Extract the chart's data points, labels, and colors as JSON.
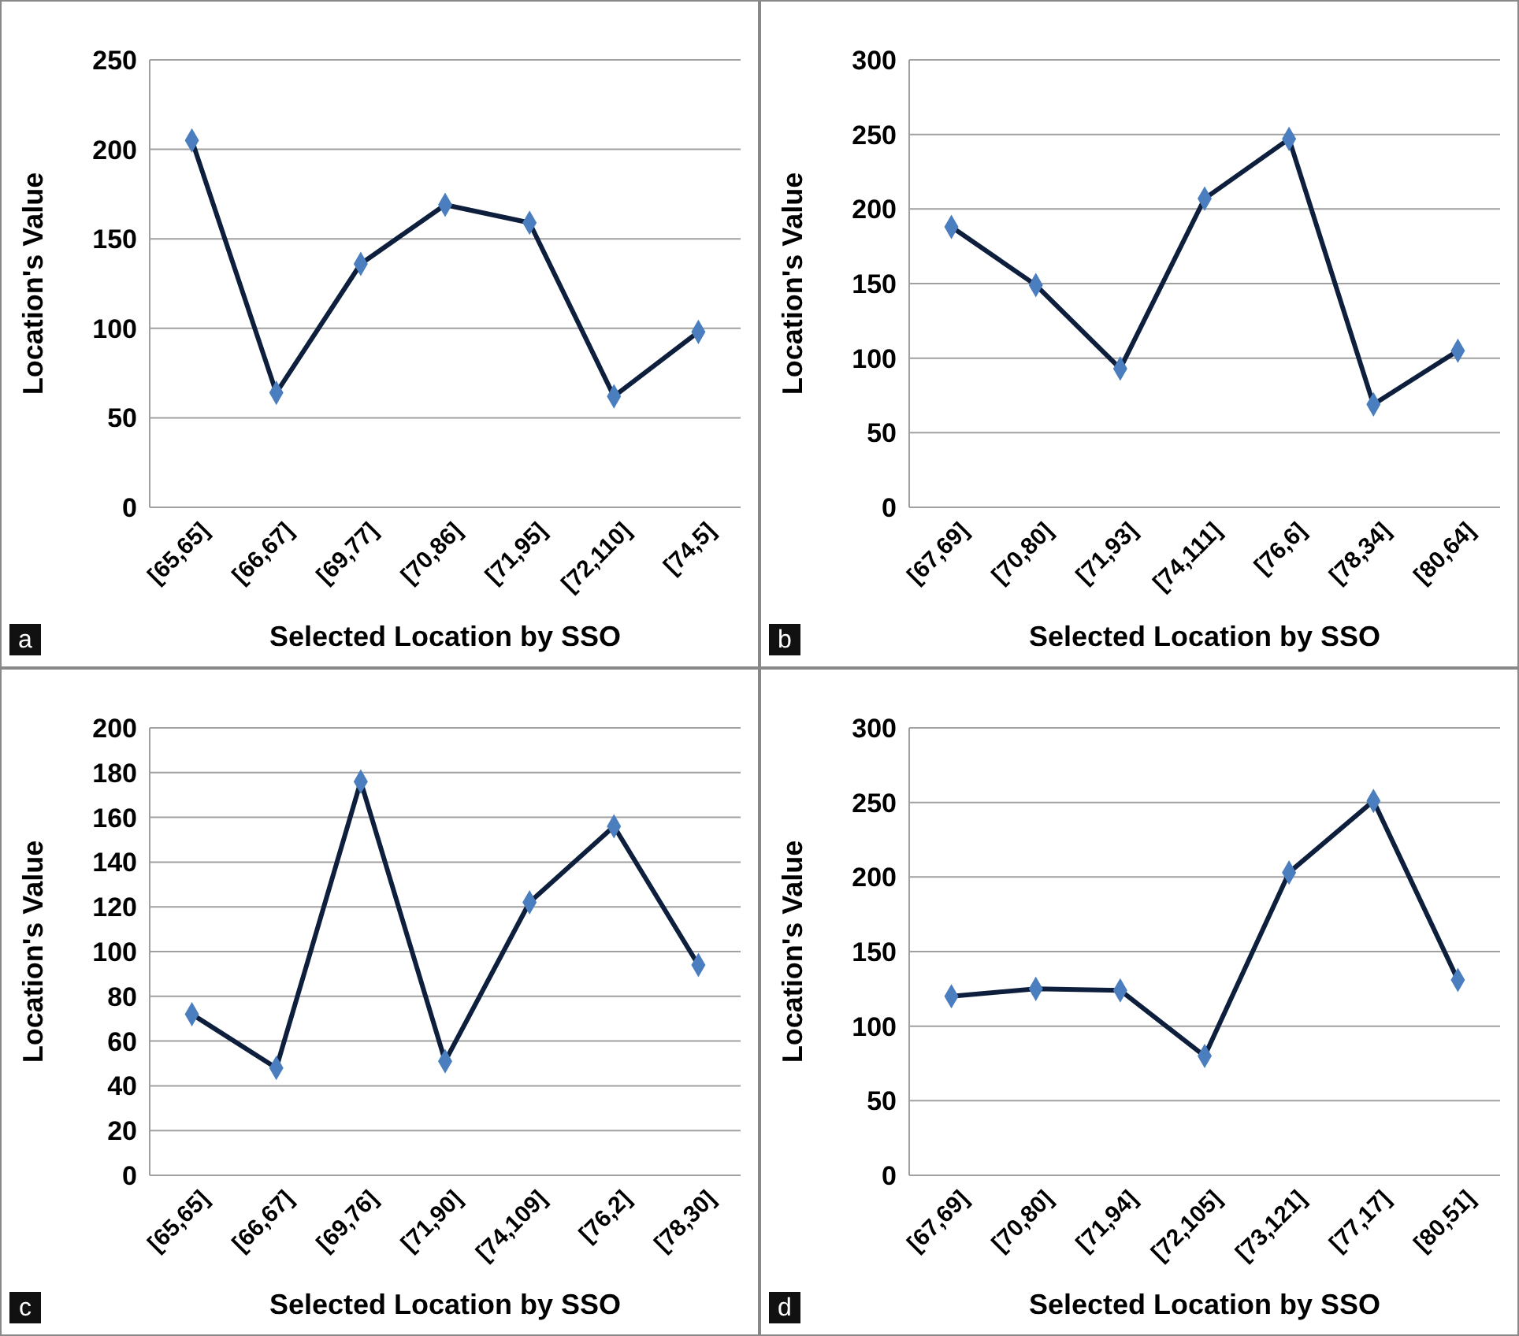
{
  "chart_data": [
    {
      "type": "line",
      "categories": [
        "[65,65]",
        "[66,67]",
        "[69,77]",
        "[70,86]",
        "[71,95]",
        "[72,110]",
        "[74,5]"
      ],
      "series": [
        {
          "color": "#0d1f3c",
          "colors": [
            "#4a7ebf",
            "#4a7ebf",
            "#4a7ebf",
            "#4a7ebf",
            "#4a7ebf",
            "#4a7ebf",
            "#4a7ebf"
          ],
          "values": [
            205,
            64,
            136,
            169,
            159,
            62,
            98
          ]
        }
      ],
      "ylim": [
        0,
        250
      ],
      "yticks": [
        0,
        50,
        100,
        150,
        200,
        250
      ],
      "grid": "y",
      "marker": "diamond",
      "line_style": "solid",
      "xlabel": "Selected Location by SSO",
      "ylabel": "Location's Value",
      "annotations": [
        "a"
      ]
    },
    {
      "type": "line",
      "categories": [
        "[67,69]",
        "[70,80]",
        "[71,93]",
        "[74,111]",
        "[76,6]",
        "[78,34]",
        "[80,64]"
      ],
      "series": [
        {
          "color": "#0d1f3c",
          "colors": [
            "#4a7ebf",
            "#4a7ebf",
            "#4a7ebf",
            "#4a7ebf",
            "#4a7ebf",
            "#4a7ebf",
            "#4a7ebf"
          ],
          "values": [
            188,
            149,
            93,
            207,
            247,
            69,
            105
          ]
        }
      ],
      "ylim": [
        0,
        300
      ],
      "yticks": [
        0,
        50,
        100,
        150,
        200,
        250,
        300
      ],
      "grid": "y",
      "marker": "diamond",
      "line_style": "solid",
      "xlabel": "Selected Location by SSO",
      "ylabel": "Location's Value",
      "annotations": [
        "b"
      ]
    },
    {
      "type": "line",
      "categories": [
        "[65,65]",
        "[66,67]",
        "[69,76]",
        "[71,90]",
        "[74,109]",
        "[76,2]",
        "[78,30]"
      ],
      "series": [
        {
          "color": "#0d1f3c",
          "colors": [
            "#4a7ebf",
            "#4a7ebf",
            "#4a7ebf",
            "#4a7ebf",
            "#4a7ebf",
            "#4a7ebf",
            "#4a7ebf"
          ],
          "values": [
            72,
            48,
            176,
            51,
            122,
            156,
            94
          ]
        }
      ],
      "ylim": [
        0,
        200
      ],
      "yticks": [
        0,
        20,
        40,
        60,
        80,
        100,
        120,
        140,
        160,
        180,
        200
      ],
      "grid": "y",
      "marker": "diamond",
      "line_style": "solid",
      "xlabel": "Selected Location by SSO",
      "ylabel": "Location's Value",
      "annotations": [
        "c"
      ]
    },
    {
      "type": "line",
      "categories": [
        "[67,69]",
        "[70,80]",
        "[71,94]",
        "[72,105]",
        "[73,121]",
        "[77,17]",
        "[80,51]"
      ],
      "series": [
        {
          "color": "#0d1f3c",
          "colors": [
            "#4a7ebf",
            "#4a7ebf",
            "#4a7ebf",
            "#4a7ebf",
            "#4a7ebf",
            "#4a7ebf",
            "#4a7ebf"
          ],
          "values": [
            120,
            125,
            124,
            80,
            203,
            251,
            131
          ]
        }
      ],
      "ylim": [
        0,
        300
      ],
      "yticks": [
        0,
        50,
        100,
        150,
        200,
        250,
        300
      ],
      "grid": "y",
      "marker": "diamond",
      "line_style": "solid",
      "xlabel": "Selected Location by SSO",
      "ylabel": "Location's Value",
      "annotations": [
        "d"
      ]
    }
  ]
}
